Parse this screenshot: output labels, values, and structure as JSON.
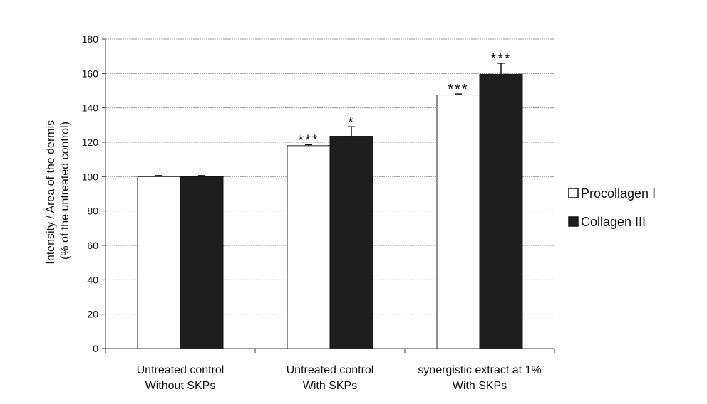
{
  "chart_data": {
    "type": "bar",
    "title": "",
    "xlabel": "",
    "ylabel_lines": [
      "Intensity / Area of the dermis",
      "(% of the untreated control)"
    ],
    "ylim": [
      0,
      180
    ],
    "yticks": [
      0,
      20,
      40,
      60,
      80,
      100,
      120,
      140,
      160,
      180
    ],
    "grid": true,
    "legend_position": "right",
    "categories": [
      [
        "Untreated control",
        "Without SKPs"
      ],
      [
        "Untreated control",
        "With SKPs"
      ],
      [
        "synergistic extract at 1%",
        "With SKPs"
      ]
    ],
    "series": [
      {
        "name": "Procollagen I",
        "color": "#ffffff",
        "values": [
          100,
          118,
          147.5
        ],
        "errors": [
          0.6,
          0.6,
          0.6
        ],
        "significance": [
          "",
          "***",
          "***"
        ]
      },
      {
        "name": "Collagen III",
        "color": "#1e1e1e",
        "values": [
          100,
          123.5,
          159.5
        ],
        "errors": [
          0.6,
          5.5,
          6.5
        ],
        "significance": [
          "",
          "*",
          "***"
        ]
      }
    ]
  }
}
